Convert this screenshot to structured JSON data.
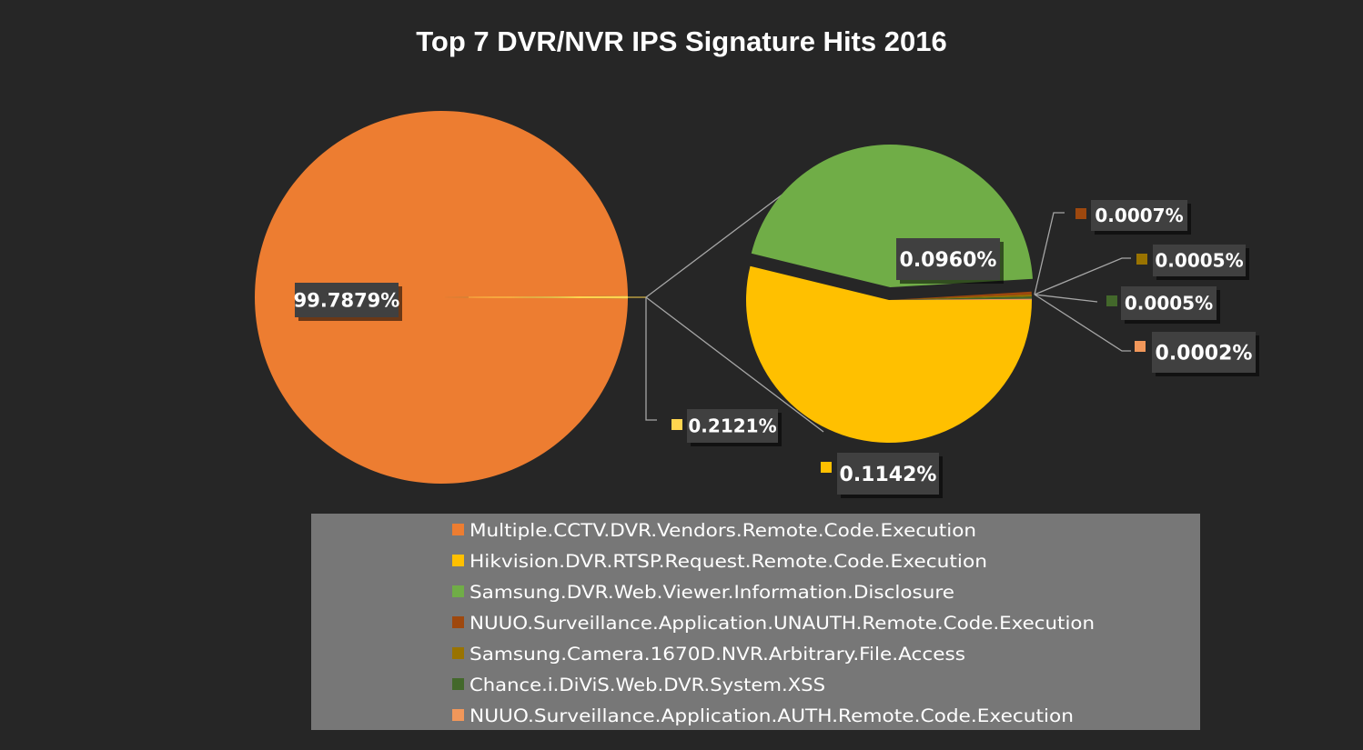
{
  "chart_data": {
    "type": "pie",
    "subtype": "pie-of-pie",
    "title": "Top 7 DVR/NVR IPS Signature Hits 2016",
    "legend_position": "bottom",
    "series": [
      {
        "name": "Multiple.CCTV.DVR.Vendors.Remote.Code.Execution",
        "value": 99.7879,
        "label": "99.7879%",
        "color": "#ED7D31"
      },
      {
        "name": "Hikvision.DVR.RTSP.Request.Remote.Code.Execution",
        "value": 0.1142,
        "label": "0.1142%",
        "color": "#FFC000"
      },
      {
        "name": "Samsung.DVR.Web.Viewer.Information.Disclosure",
        "value": 0.096,
        "label": "0.0960%",
        "color": "#70AD47"
      },
      {
        "name": "NUUO.Surveillance.Application.UNAUTH.Remote.Code.Execution",
        "value": 0.0007,
        "label": "0.0007%",
        "color": "#9E480E"
      },
      {
        "name": "Samsung.Camera.1670D.NVR.Arbitrary.File.Access",
        "value": 0.0005,
        "label": "0.0005%",
        "color": "#997300"
      },
      {
        "name": "Chance.i.DiViS.Web.DVR.System.XSS",
        "value": 0.0005,
        "label": "0.0005%",
        "color": "#43682B"
      },
      {
        "name": "NUUO.Surveillance.Application.AUTH.Remote.Code.Execution",
        "value": 0.0002,
        "label": "0.0002%",
        "color": "#F1975A"
      }
    ],
    "other_slice": {
      "value": 0.2121,
      "label": "0.2121%",
      "color": "#FFD54F"
    }
  },
  "colors": {
    "background": "#262626",
    "legend_bg": "#777777",
    "leader": "#a6a6a6",
    "label_bg": "#404040"
  }
}
